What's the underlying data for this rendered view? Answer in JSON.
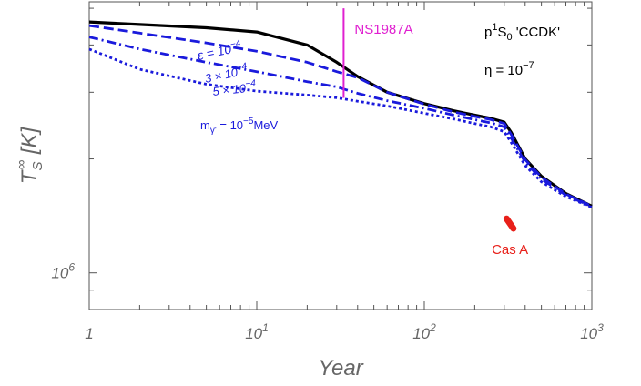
{
  "chart_data": {
    "type": "line",
    "xlabel": "Year",
    "ylabel": "T",
    "ylabel_subscript": "S",
    "ylabel_superscript": "∞",
    "ylabel_unit": "[K]",
    "x_scale": "log",
    "y_scale": "log",
    "xlim": [
      1,
      1000
    ],
    "ylim": [
      800000,
      5200000
    ],
    "x_ticks": [
      {
        "value": 1,
        "base": "1",
        "exp": ""
      },
      {
        "value": 10,
        "base": "10",
        "exp": "1"
      },
      {
        "value": 100,
        "base": "10",
        "exp": "2"
      },
      {
        "value": 1000,
        "base": "10",
        "exp": "3"
      }
    ],
    "y_ticks": [
      {
        "value": 1000000,
        "base": "10",
        "exp": "6"
      }
    ],
    "grid": false,
    "colors": {
      "black": "#000000",
      "blue": "#1a1adc",
      "magenta": "#e020d0",
      "red": "#e8201a"
    },
    "series": [
      {
        "style": "solid",
        "color": "#000000",
        "x": [
          1,
          2,
          5,
          10,
          20,
          30,
          40,
          60,
          100,
          150,
          200,
          250,
          300,
          330,
          400,
          500,
          700,
          1000
        ],
        "y": [
          4600000,
          4530000,
          4440000,
          4330000,
          4000000,
          3600000,
          3300000,
          3000000,
          2800000,
          2680000,
          2610000,
          2560000,
          2500000,
          2350000,
          2000000,
          1800000,
          1620000,
          1500000
        ]
      },
      {
        "style": "dashed",
        "color": "#1a1adc",
        "x": [
          1,
          2,
          5,
          10,
          20,
          30,
          40,
          60,
          100,
          150,
          200,
          250,
          300,
          330,
          400,
          500,
          700,
          1000
        ],
        "y": [
          4500000,
          4300000,
          4050000,
          3850000,
          3600000,
          3400000,
          3280000,
          3000000,
          2790000,
          2660000,
          2590000,
          2540000,
          2480000,
          2320000,
          1990000,
          1790000,
          1615000,
          1500000
        ]
      },
      {
        "style": "dashdot",
        "color": "#1a1adc",
        "x": [
          1,
          2,
          5,
          10,
          20,
          30,
          40,
          60,
          100,
          150,
          200,
          250,
          300,
          330,
          400,
          500,
          700,
          1000
        ],
        "y": [
          4200000,
          3900000,
          3600000,
          3400000,
          3200000,
          3100000,
          2980000,
          2850000,
          2720000,
          2610000,
          2540000,
          2490000,
          2430000,
          2270000,
          1960000,
          1770000,
          1605000,
          1495000
        ]
      },
      {
        "style": "dotted",
        "color": "#1a1adc",
        "x": [
          1,
          2,
          5,
          10,
          20,
          30,
          40,
          60,
          100,
          150,
          200,
          250,
          300,
          330,
          400,
          500,
          700,
          1000
        ],
        "y": [
          3900000,
          3450000,
          3150000,
          3020000,
          2950000,
          2900000,
          2840000,
          2760000,
          2640000,
          2550000,
          2480000,
          2430000,
          2360000,
          2210000,
          1920000,
          1740000,
          1590000,
          1490000
        ]
      }
    ],
    "ns1987a": {
      "label": "NS1987A",
      "x": 33,
      "y_range": [
        2900000,
        5000000
      ]
    },
    "cas_a": {
      "label": "Cas A",
      "x_range": [
        310,
        340
      ],
      "y_range": [
        1310000,
        1390000
      ]
    },
    "annotations": {
      "model_label": "p¹S₀ 'CCDK'",
      "model_base": "p",
      "model_sup": "1",
      "model_sub": "0",
      "model_rest": " 'CCDK'",
      "eta_label": "η = 10⁻⁷",
      "eta_prefix": "η = 10",
      "eta_exp": "−7",
      "eps1_prefix": "ε = 10",
      "eps1_exp": "−4",
      "eps2_text": "3 × 10",
      "eps2_exp": "−4",
      "eps3_text": "5 × 10",
      "eps3_exp": "−4",
      "mass_label": "m_γ' = 10⁻⁵ MeV",
      "mass_base": "m",
      "mass_sub": "γ'",
      "mass_mid": " = 10",
      "mass_exp": "−5",
      "mass_unit": "MeV"
    }
  }
}
